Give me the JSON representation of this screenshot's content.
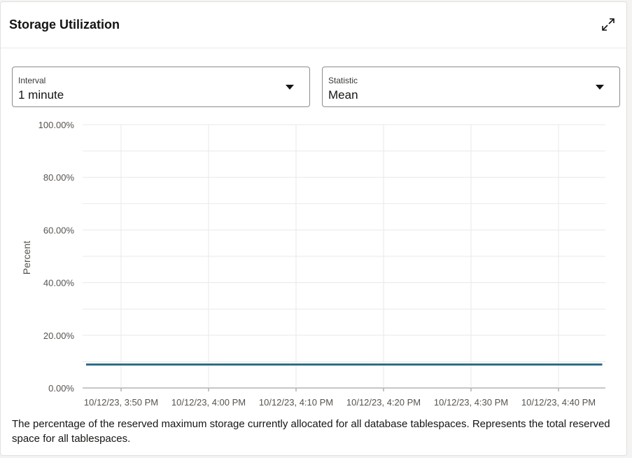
{
  "card": {
    "title": "Storage Utilization",
    "expand_icon": "expand-icon"
  },
  "controls": {
    "interval": {
      "label": "Interval",
      "value": "1 minute"
    },
    "statistic": {
      "label": "Statistic",
      "value": "Mean"
    }
  },
  "chart_data": {
    "type": "line",
    "ylabel": "Percent",
    "xlabel": "",
    "ylim": [
      0,
      100
    ],
    "y_ticks": [
      "0.00%",
      "20.00%",
      "40.00%",
      "60.00%",
      "80.00%",
      "100.00%"
    ],
    "x_ticks": [
      "10/12/23, 3:50 PM",
      "10/12/23, 4:00 PM",
      "10/12/23, 4:10 PM",
      "10/12/23, 4:20 PM",
      "10/12/23, 4:30 PM",
      "10/12/23, 4:40 PM"
    ],
    "x": [
      "10/12/23, 3:46 PM",
      "10/12/23, 4:45 PM"
    ],
    "series": [
      {
        "values": [
          8.9,
          8.9
        ],
        "color": "#2e6f86"
      }
    ],
    "grid": true
  },
  "description": "The percentage of the reserved maximum storage currently allocated for all database tablespaces. Represents the total reserved space for all tablespaces."
}
